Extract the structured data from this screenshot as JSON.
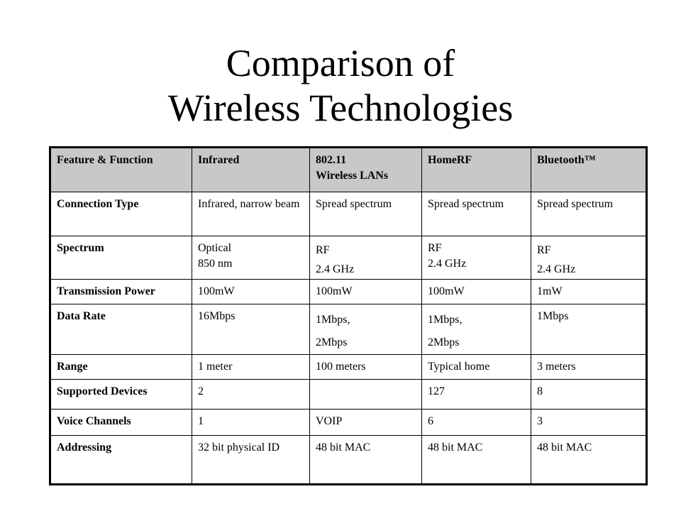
{
  "title": {
    "line1": "Comparison of",
    "line2": "Wireless Technologies"
  },
  "table": {
    "headers": [
      "Feature & Function",
      "Infrared",
      "802.11\nWireless LANs",
      "HomeRF",
      "Bluetooth™"
    ],
    "rows": [
      [
        "Connection Type",
        "Infrared, narrow beam",
        "Spread spectrum",
        "Spread spectrum",
        "Spread spectrum"
      ],
      [
        "Spectrum",
        "Optical\n850 nm",
        "RF\n2.4 GHz",
        "RF\n2.4 GHz",
        "RF\n2.4 GHz"
      ],
      [
        "Transmission Power",
        "100mW",
        "100mW",
        "100mW",
        "1mW"
      ],
      [
        "Data Rate",
        "16Mbps",
        "1Mbps,\n2Mbps",
        "1Mbps,\n2Mbps",
        "1Mbps"
      ],
      [
        "Range",
        "1 meter",
        "100 meters",
        "Typical home",
        "3 meters"
      ],
      [
        "Supported Devices",
        "2",
        "",
        "127",
        "8"
      ],
      [
        "Voice Channels",
        "1",
        "VOIP",
        "6",
        "3"
      ],
      [
        "Addressing",
        "32 bit physical ID",
        "48 bit MAC",
        "48 bit MAC",
        "48 bit MAC"
      ]
    ]
  }
}
